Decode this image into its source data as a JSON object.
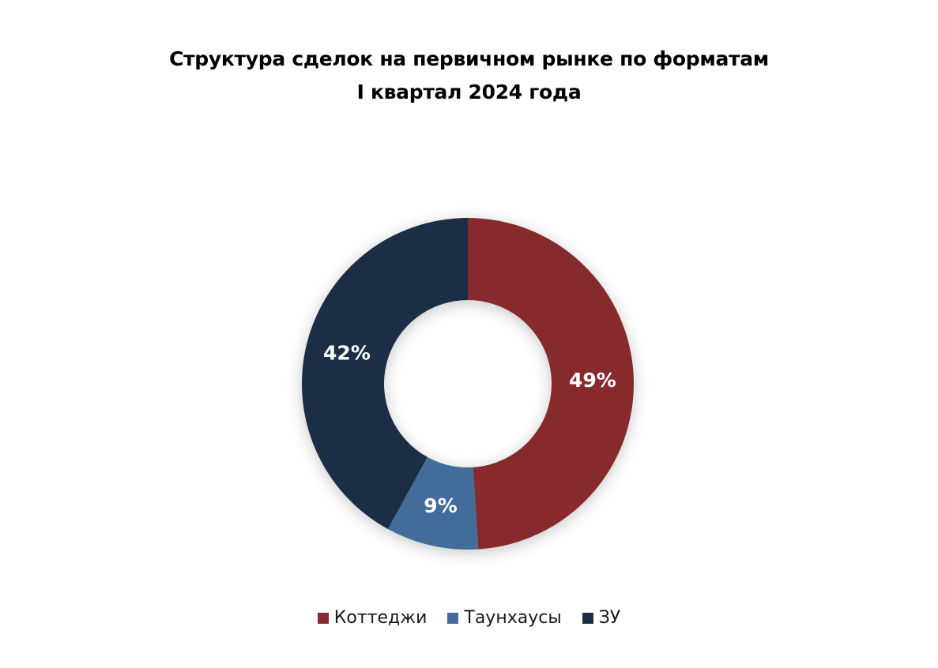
{
  "chart_data": {
    "type": "pie",
    "variant": "donut",
    "title": "Структура сделок на первичном рынке по форматам",
    "subtitle": "I квартал 2024 года",
    "legend_position": "bottom",
    "series": [
      {
        "name": "Коттеджи",
        "value": 49,
        "label": "49%",
        "color": "#87292f"
      },
      {
        "name": "Таунхаусы",
        "value": 9,
        "label": "9%",
        "color": "#426c99"
      },
      {
        "name": "ЗУ",
        "value": 42,
        "label": "42%",
        "color": "#1e2d45"
      }
    ]
  }
}
